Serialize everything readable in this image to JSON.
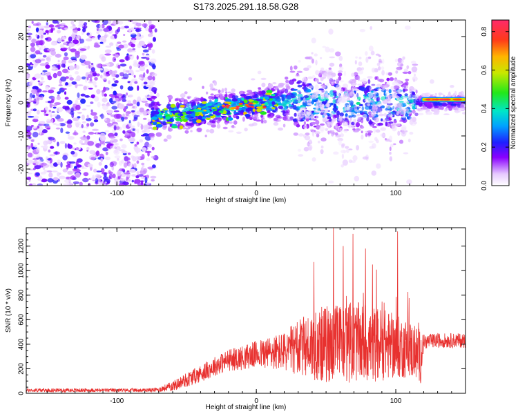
{
  "title": "S173.2025.291.18.58.G28",
  "chart_data": [
    {
      "type": "heatmap",
      "xlabel": "Height of straight line (km)",
      "ylabel": "Frequency (Hz)",
      "xlim": [
        -165,
        150
      ],
      "ylim": [
        -25,
        25
      ],
      "xticks": [
        -100,
        0,
        100
      ],
      "yticks": [
        -20,
        -10,
        0,
        10,
        20
      ],
      "colorbar": {
        "label": "Normalized spectral amplitude",
        "range": [
          0,
          0.86
        ],
        "ticks": [
          0.0,
          0.2,
          0.4,
          0.6,
          0.8
        ]
      },
      "features": [
        {
          "name": "noise",
          "x_range": [
            -165,
            -72
          ],
          "y_range": [
            -25,
            25
          ],
          "amplitude": 0.15
        },
        {
          "name": "signal-band",
          "x_range": [
            -75,
            150
          ],
          "center_frequency": 0,
          "half_width": 5,
          "amplitude": 0.45
        },
        {
          "name": "drifting-band",
          "x_range": [
            -75,
            10
          ],
          "y_start": -5,
          "y_end": 0,
          "amplitude": 0.55
        },
        {
          "name": "steady-line",
          "x_range": [
            118,
            150
          ],
          "frequency": 1,
          "amplitude": 0.86
        }
      ]
    },
    {
      "type": "line",
      "xlabel": "Height of straight line (km)",
      "ylabel": "SNR (10 * v/v)",
      "xlim": [
        -165,
        150
      ],
      "ylim": [
        0,
        1350
      ],
      "xticks": [
        -100,
        0,
        100
      ],
      "yticks": [
        0,
        200,
        400,
        600,
        800,
        1000,
        1200
      ],
      "series": [
        {
          "name": "SNR",
          "color": "#e8312f",
          "x": [
            -165,
            -140,
            -120,
            -100,
            -80,
            -70,
            -60,
            -50,
            -40,
            -30,
            -20,
            -10,
            0,
            10,
            20,
            30,
            40,
            50,
            60,
            70,
            80,
            90,
            100,
            110,
            118,
            120,
            130,
            140,
            150
          ],
          "envelope_mean": [
            25,
            25,
            25,
            25,
            25,
            30,
            60,
            110,
            160,
            220,
            270,
            290,
            320,
            330,
            340,
            370,
            390,
            400,
            410,
            420,
            400,
            400,
            380,
            360,
            300,
            420,
            430,
            430,
            430
          ],
          "envelope_spread": [
            15,
            15,
            15,
            15,
            15,
            20,
            40,
            60,
            70,
            80,
            90,
            100,
            110,
            140,
            160,
            230,
            280,
            320,
            330,
            330,
            320,
            300,
            260,
            240,
            220,
            60,
            60,
            60,
            60
          ],
          "peaks": [
            [
              55,
              1350
            ],
            [
              62,
              1200
            ],
            [
              69,
              1300
            ],
            [
              78,
              1180
            ],
            [
              101,
              1320
            ],
            [
              41,
              1070
            ],
            [
              83,
              1050
            ]
          ]
        }
      ]
    }
  ]
}
